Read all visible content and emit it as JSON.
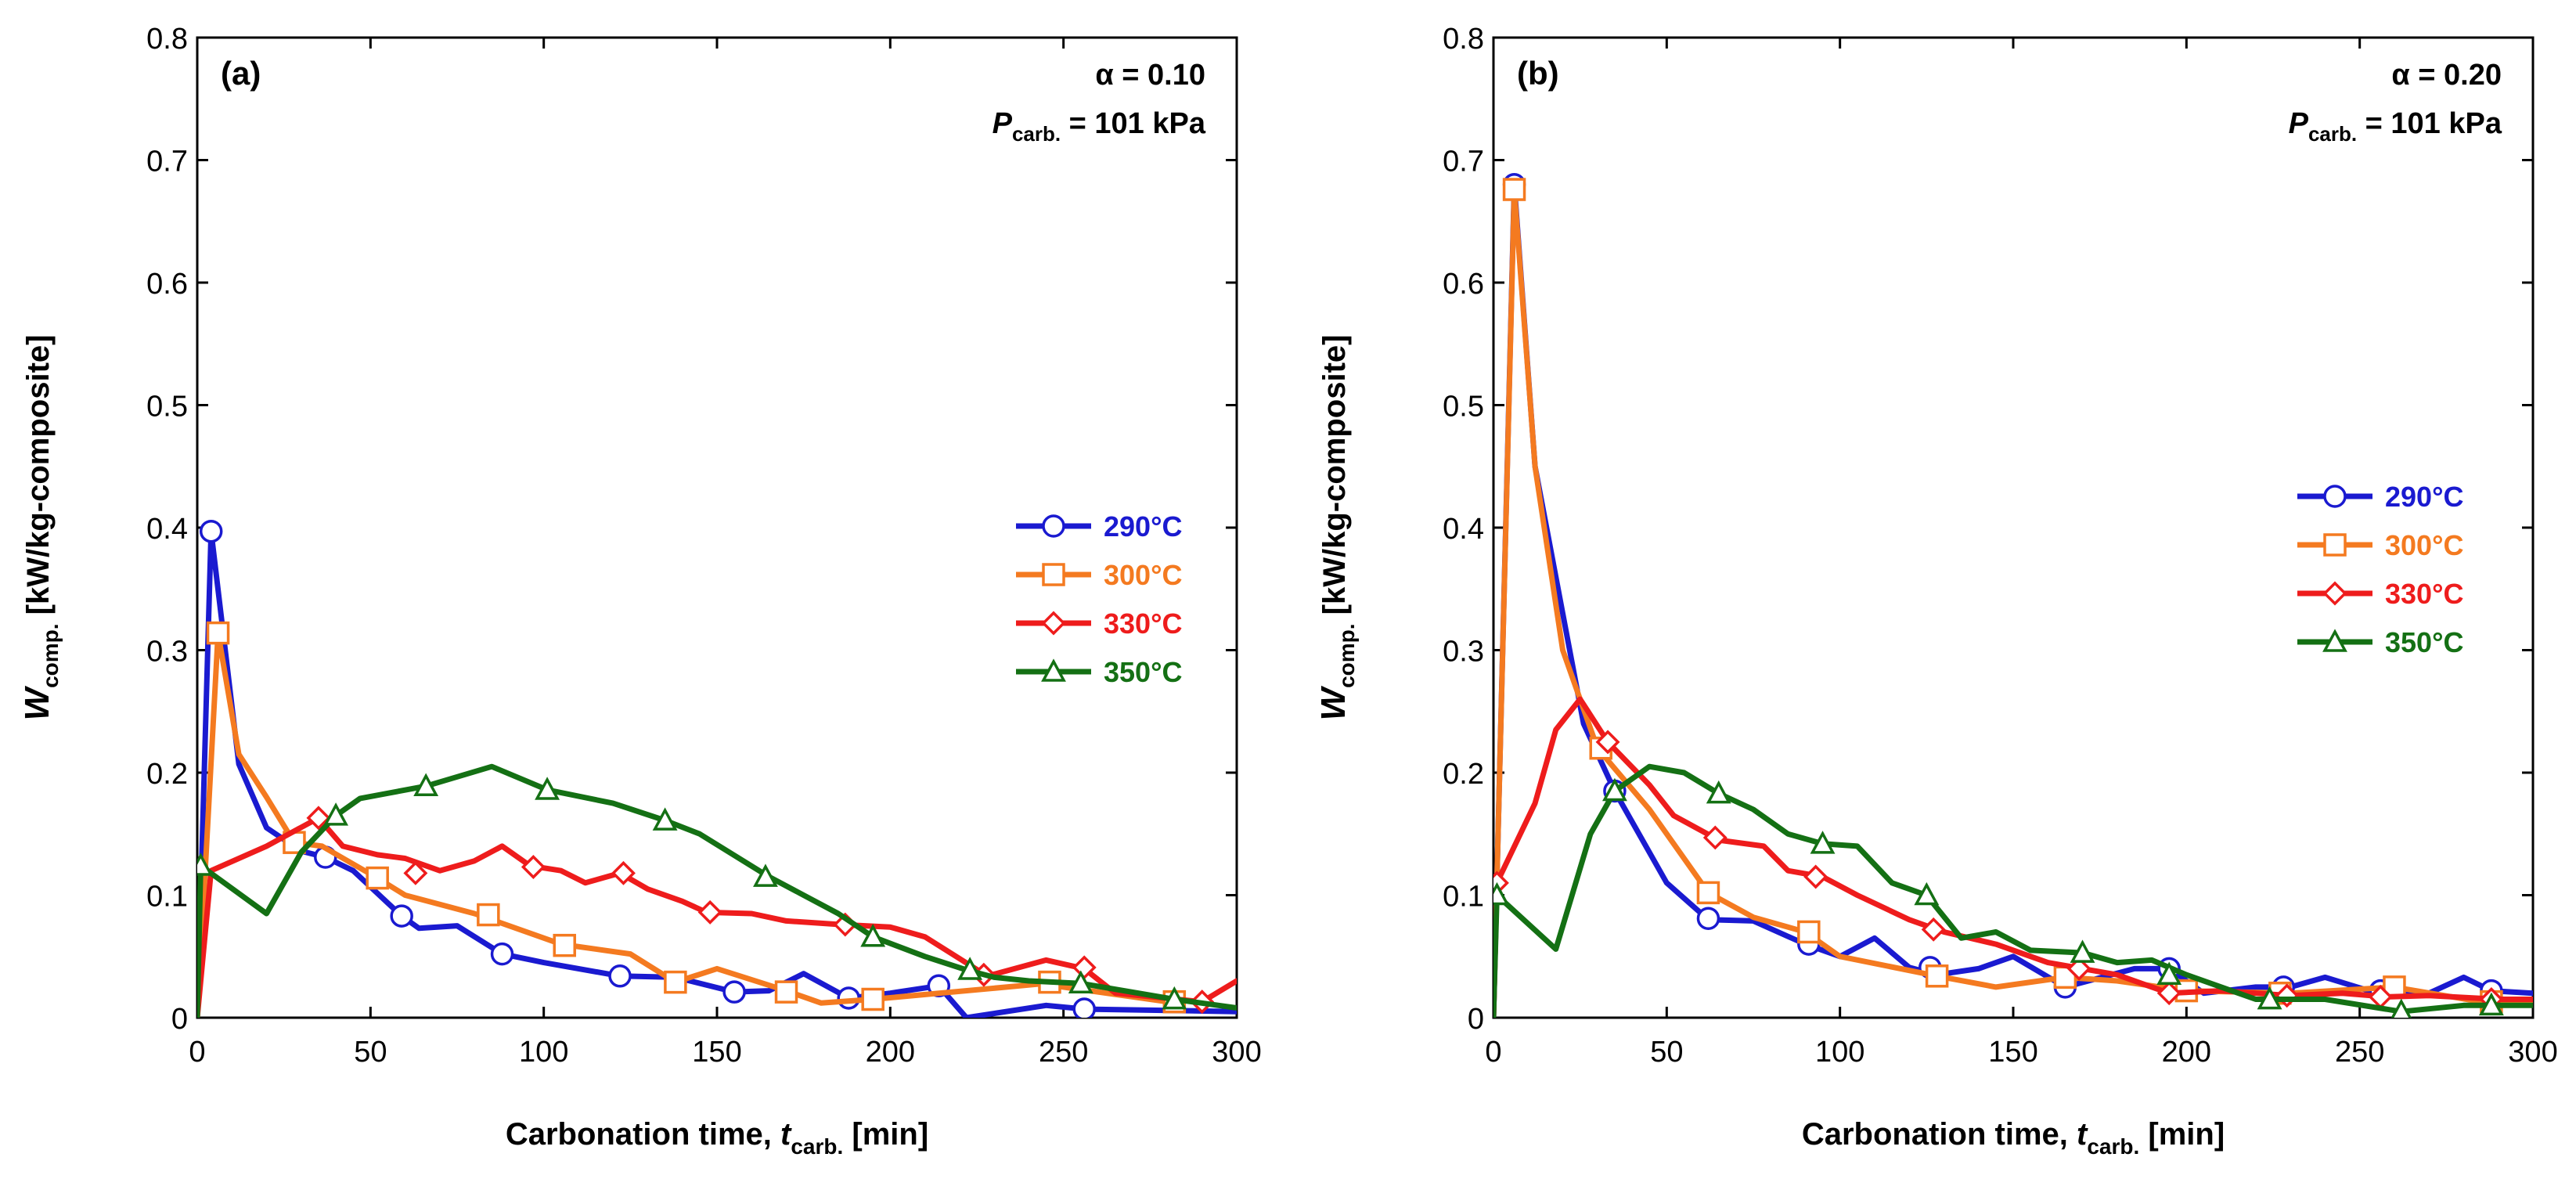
{
  "chart_data": [
    {
      "type": "line",
      "panel_label": "(a)",
      "annotation": {
        "alpha_label": "α = 0.10",
        "p_symbol": "P",
        "p_sub": "carb.",
        "p_value": " = 101 kPa"
      },
      "xlabel": {
        "main": "Carbonation time, ",
        "symbol": "t",
        "sub": "carb.",
        "unit": " [min]"
      },
      "ylabel": {
        "symbol": "W",
        "sub": "comp.",
        "unit": " [kW/kg-composite]"
      },
      "xlim": [
        0,
        300
      ],
      "ylim": [
        0,
        0.8
      ],
      "xticks": [
        0,
        50,
        100,
        150,
        200,
        250,
        300
      ],
      "xtick_labels": [
        "0",
        "50",
        "100",
        "150",
        "200",
        "250",
        "300"
      ],
      "yticks": [
        0,
        0.1,
        0.2,
        0.3,
        0.4,
        0.5,
        0.6,
        0.7,
        0.8
      ],
      "ytick_labels": [
        "0",
        "0.1",
        "0.2",
        "0.3",
        "0.4",
        "0.5",
        "0.6",
        "0.7",
        "0.8"
      ],
      "legend": "right",
      "series": [
        {
          "name": "290°C",
          "color": "#1a1ad0",
          "marker": "circle",
          "x": [
            0,
            4,
            12,
            20,
            30,
            37,
            45,
            59,
            64,
            75,
            88,
            100,
            122,
            138,
            155,
            165,
            175,
            188,
            200,
            214,
            222,
            245,
            256,
            300
          ],
          "y": [
            0,
            0.397,
            0.207,
            0.155,
            0.136,
            0.131,
            0.12,
            0.083,
            0.073,
            0.075,
            0.052,
            0.045,
            0.034,
            0.033,
            0.021,
            0.022,
            0.036,
            0.016,
            0.02,
            0.026,
            0.0,
            0.01,
            0.007,
            0.005
          ],
          "markers_x": [
            4,
            37,
            59,
            88,
            122,
            155,
            188,
            214,
            256
          ],
          "markers_y": [
            0.397,
            0.131,
            0.083,
            0.052,
            0.034,
            0.021,
            0.016,
            0.026,
            0.007
          ]
        },
        {
          "name": "300°C",
          "color": "#f47a20",
          "marker": "square",
          "x": [
            0,
            6,
            12,
            20,
            28,
            36,
            52,
            60,
            80,
            105,
            125,
            138,
            150,
            170,
            180,
            195,
            245,
            250,
            280
          ],
          "y": [
            0,
            0.314,
            0.215,
            0.18,
            0.143,
            0.14,
            0.114,
            0.1,
            0.085,
            0.06,
            0.052,
            0.029,
            0.04,
            0.022,
            0.012,
            0.015,
            0.028,
            0.025,
            0.013
          ],
          "markers_x": [
            6,
            28,
            52,
            84,
            106,
            138,
            170,
            195,
            246,
            282
          ],
          "markers_y": [
            0.314,
            0.143,
            0.114,
            0.084,
            0.059,
            0.029,
            0.021,
            0.015,
            0.029,
            0.013
          ]
        },
        {
          "name": "330°C",
          "color": "#ee1c1c",
          "marker": "diamond",
          "x": [
            0,
            4,
            20,
            35,
            42,
            52,
            60,
            70,
            80,
            88,
            96,
            105,
            112,
            122,
            130,
            140,
            147,
            160,
            170,
            186,
            200,
            210,
            228,
            245,
            256,
            265,
            290,
            300
          ],
          "y": [
            0,
            0.12,
            0.14,
            0.163,
            0.14,
            0.133,
            0.13,
            0.12,
            0.128,
            0.14,
            0.124,
            0.12,
            0.11,
            0.118,
            0.105,
            0.095,
            0.086,
            0.085,
            0.079,
            0.076,
            0.074,
            0.066,
            0.034,
            0.047,
            0.04,
            0.02,
            0.013,
            0.03
          ],
          "markers_x": [
            35,
            63,
            97,
            123,
            148,
            187,
            227,
            256,
            290
          ],
          "markers_y": [
            0.163,
            0.118,
            0.123,
            0.118,
            0.086,
            0.076,
            0.035,
            0.041,
            0.013
          ]
        },
        {
          "name": "350°C",
          "color": "#147014",
          "marker": "triangle",
          "x": [
            0,
            1,
            20,
            30,
            40,
            47,
            66,
            85,
            101,
            120,
            135,
            145,
            165,
            185,
            195,
            210,
            222,
            230,
            240,
            255,
            282,
            300
          ],
          "y": [
            0,
            0.124,
            0.085,
            0.135,
            0.165,
            0.179,
            0.189,
            0.205,
            0.186,
            0.175,
            0.161,
            0.15,
            0.115,
            0.085,
            0.066,
            0.05,
            0.039,
            0.033,
            0.03,
            0.028,
            0.015,
            0.008
          ],
          "markers_x": [
            1,
            40,
            66,
            101,
            135,
            164,
            195,
            223,
            255,
            282
          ],
          "markers_y": [
            0.124,
            0.165,
            0.189,
            0.186,
            0.161,
            0.115,
            0.066,
            0.039,
            0.028,
            0.015
          ]
        }
      ]
    },
    {
      "type": "line",
      "panel_label": "(b)",
      "annotation": {
        "alpha_label": "α = 0.20",
        "p_symbol": "P",
        "p_sub": "carb.",
        "p_value": " = 101 kPa"
      },
      "xlabel": {
        "main": "Carbonation time, ",
        "symbol": "t",
        "sub": "carb.",
        "unit": " [min]"
      },
      "ylabel": {
        "symbol": "W",
        "sub": "comp.",
        "unit": " [kW/kg-composite]"
      },
      "xlim": [
        0,
        300
      ],
      "ylim": [
        0,
        0.8
      ],
      "xticks": [
        0,
        50,
        100,
        150,
        200,
        250,
        300
      ],
      "xtick_labels": [
        "0",
        "50",
        "100",
        "150",
        "200",
        "250",
        "300"
      ],
      "yticks": [
        0,
        0.1,
        0.2,
        0.3,
        0.4,
        0.5,
        0.6,
        0.7,
        0.8
      ],
      "ytick_labels": [
        "0",
        "0.1",
        "0.2",
        "0.3",
        "0.4",
        "0.5",
        "0.6",
        "0.7",
        "0.8"
      ],
      "legend": "right",
      "series": [
        {
          "name": "290°C",
          "color": "#1a1ad0",
          "marker": "circle",
          "x": [
            0,
            6,
            12,
            20,
            26,
            35,
            50,
            62,
            75,
            90,
            100,
            110,
            120,
            128,
            140,
            150,
            165,
            185,
            195,
            205,
            220,
            230,
            240,
            255,
            270,
            280,
            288,
            300
          ],
          "y": [
            0,
            0.68,
            0.45,
            0.33,
            0.24,
            0.185,
            0.11,
            0.08,
            0.079,
            0.06,
            0.05,
            0.065,
            0.041,
            0.035,
            0.04,
            0.05,
            0.025,
            0.04,
            0.04,
            0.02,
            0.025,
            0.025,
            0.033,
            0.02,
            0.02,
            0.033,
            0.022,
            0.02
          ],
          "markers_x": [
            6,
            35,
            62,
            91,
            126,
            165,
            195,
            228,
            256,
            288
          ],
          "markers_y": [
            0.68,
            0.185,
            0.081,
            0.06,
            0.041,
            0.025,
            0.04,
            0.025,
            0.022,
            0.022
          ]
        },
        {
          "name": "300°C",
          "color": "#f47a20",
          "marker": "square",
          "x": [
            0,
            6,
            12,
            20,
            30,
            45,
            62,
            75,
            90,
            100,
            128,
            145,
            165,
            180,
            200,
            230,
            260,
            285,
            300
          ],
          "y": [
            0,
            0.676,
            0.45,
            0.3,
            0.22,
            0.17,
            0.102,
            0.082,
            0.07,
            0.05,
            0.034,
            0.025,
            0.033,
            0.03,
            0.022,
            0.02,
            0.025,
            0.013,
            0.013
          ],
          "markers_x": [
            6,
            31,
            62,
            91,
            128,
            165,
            200,
            227,
            260,
            288
          ],
          "markers_y": [
            0.676,
            0.22,
            0.102,
            0.07,
            0.034,
            0.033,
            0.022,
            0.02,
            0.025,
            0.013
          ]
        },
        {
          "name": "330°C",
          "color": "#ee1c1c",
          "marker": "diamond",
          "x": [
            0,
            1,
            12,
            18,
            25,
            33,
            45,
            52,
            65,
            78,
            85,
            95,
            105,
            120,
            130,
            145,
            160,
            180,
            195,
            210,
            230,
            245,
            258,
            270,
            290,
            300
          ],
          "y": [
            0,
            0.11,
            0.175,
            0.235,
            0.26,
            0.225,
            0.19,
            0.165,
            0.145,
            0.14,
            0.12,
            0.115,
            0.1,
            0.08,
            0.07,
            0.06,
            0.045,
            0.035,
            0.02,
            0.022,
            0.018,
            0.02,
            0.017,
            0.018,
            0.015,
            0.015
          ],
          "markers_x": [
            1,
            33,
            64,
            93,
            127,
            169,
            195,
            229,
            256,
            288
          ],
          "markers_y": [
            0.11,
            0.225,
            0.147,
            0.115,
            0.072,
            0.04,
            0.02,
            0.018,
            0.017,
            0.015
          ]
        },
        {
          "name": "350°C",
          "color": "#147014",
          "marker": "triangle",
          "x": [
            0,
            1,
            18,
            28,
            35,
            45,
            55,
            65,
            75,
            85,
            95,
            105,
            115,
            125,
            135,
            145,
            155,
            170,
            180,
            190,
            200,
            220,
            240,
            262,
            280,
            300
          ],
          "y": [
            0,
            0.1,
            0.056,
            0.15,
            0.185,
            0.205,
            0.2,
            0.183,
            0.17,
            0.15,
            0.142,
            0.14,
            0.11,
            0.1,
            0.065,
            0.07,
            0.055,
            0.053,
            0.045,
            0.047,
            0.035,
            0.015,
            0.015,
            0.005,
            0.01,
            0.01
          ],
          "markers_x": [
            1,
            35,
            65,
            95,
            125,
            170,
            195,
            224,
            262,
            288
          ],
          "markers_y": [
            0.1,
            0.185,
            0.183,
            0.142,
            0.1,
            0.053,
            0.035,
            0.015,
            0.005,
            0.01
          ]
        }
      ]
    }
  ]
}
